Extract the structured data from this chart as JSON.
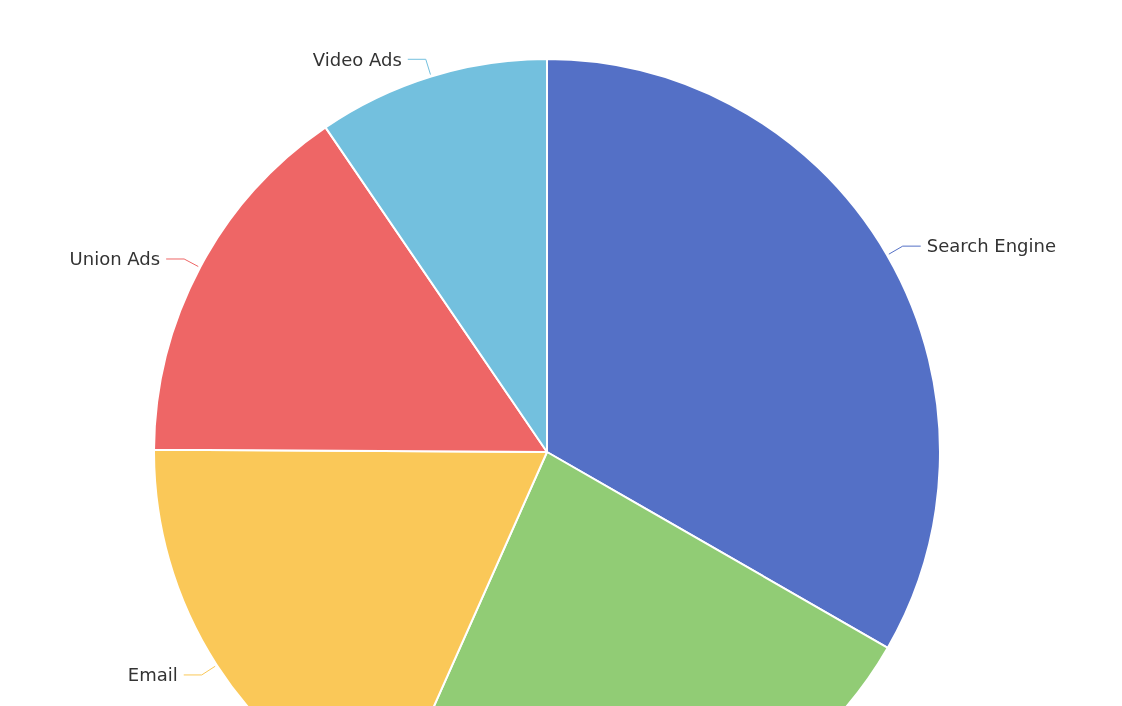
{
  "chart_data": {
    "type": "pie",
    "categories": [
      "Search Engine",
      null,
      "Email",
      "Union Ads",
      "Video Ads"
    ],
    "values": [
      33.3,
      23.36,
      18.43,
      15.38,
      9.53
    ],
    "colors": [
      "#5470c6",
      "#91cc75",
      "#fac858",
      "#ee6666",
      "#73c0de"
    ]
  }
}
